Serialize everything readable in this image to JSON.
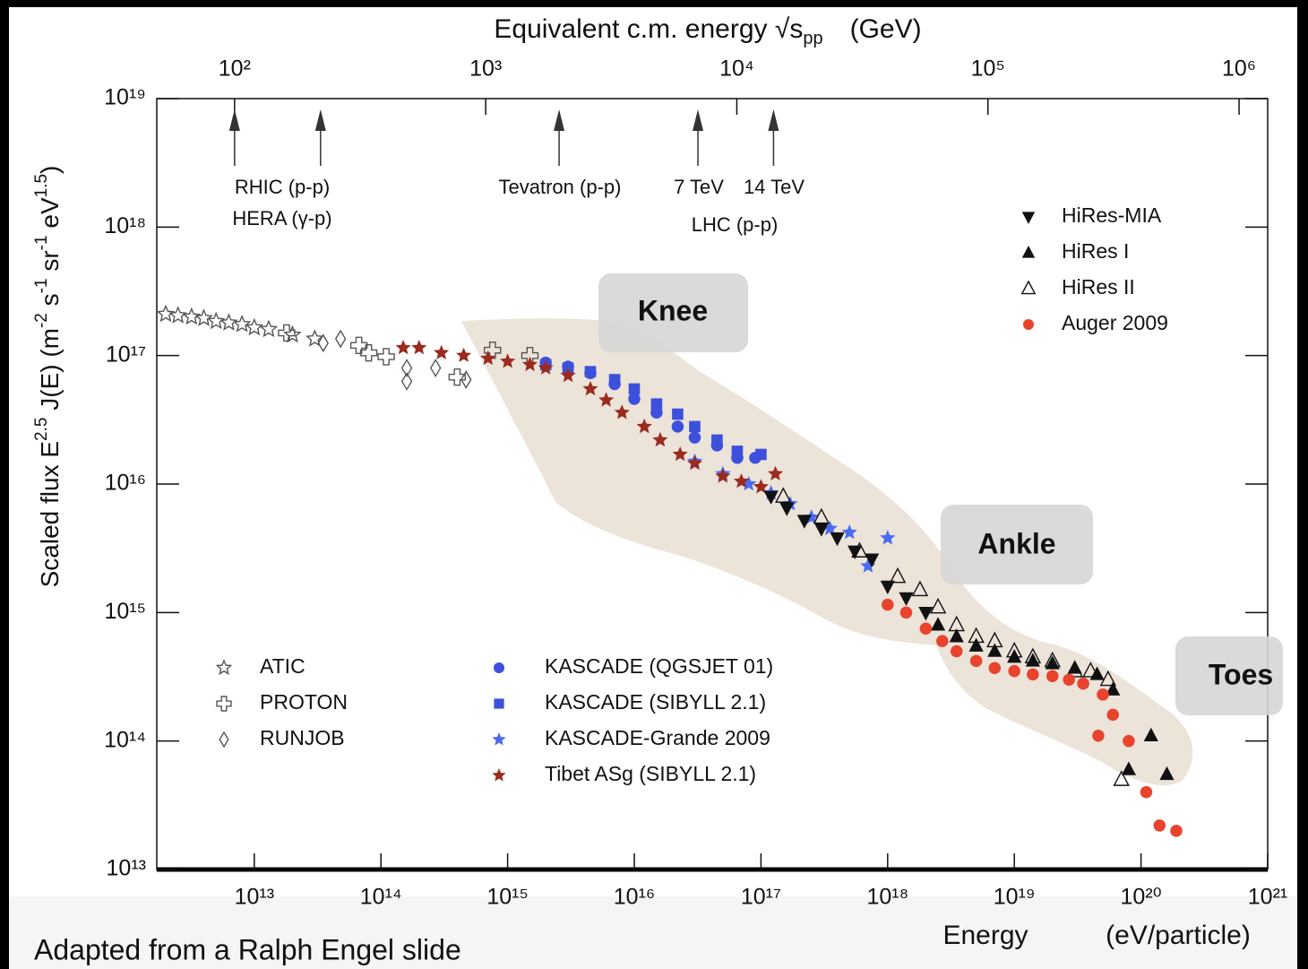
{
  "chart_data": {
    "type": "scatter",
    "title": [
      "Equivalent c.m. energy √s",
      "pp",
      "(GeV)"
    ],
    "ylabel": [
      "Scaled flux  E",
      "2.5",
      " J(E)  (m",
      "-2",
      " s",
      "-1",
      " sr",
      "-1",
      " eV",
      "1.5",
      ")"
    ],
    "xlabel": [
      "Energy",
      "(eV/particle)"
    ],
    "footnote": "Adapted from a Ralph Engel slide",
    "log_x": true,
    "log_y": true,
    "xlim": [
      1700000000000.0,
      1e+21
    ],
    "xticks": [
      {
        "value": 10000000000000.0,
        "label": "10¹³"
      },
      {
        "value": 100000000000000.0,
        "label": "10¹⁴"
      },
      {
        "value": 1000000000000000.0,
        "label": "10¹⁵"
      },
      {
        "value": 1e+16,
        "label": "10¹⁶"
      },
      {
        "value": 1e+17,
        "label": "10¹⁷"
      },
      {
        "value": 1e+18,
        "label": "10¹⁸"
      },
      {
        "value": 1e+19,
        "label": "10¹⁹"
      },
      {
        "value": 1e+20,
        "label": "10²⁰"
      },
      {
        "value": 1e+21,
        "label": "10²¹"
      }
    ],
    "x2lim": [
      49,
      1300000.0
    ],
    "x2ticks": [
      {
        "value": 100,
        "label": "10²"
      },
      {
        "value": 1000,
        "label": "10³"
      },
      {
        "value": 10000,
        "label": "10⁴"
      },
      {
        "value": 100000,
        "label": "10⁵"
      },
      {
        "value": 1000000,
        "label": "10⁶"
      }
    ],
    "ylim": [
      10000000000000.0,
      1e+19
    ],
    "yticks": [
      {
        "value": 10000000000000.0,
        "label": "10¹³"
      },
      {
        "value": 100000000000000.0,
        "label": "10¹⁴"
      },
      {
        "value": 1000000000000000.0,
        "label": "10¹⁵"
      },
      {
        "value": 1e+16,
        "label": "10¹⁶"
      },
      {
        "value": 1e+17,
        "label": "10¹⁷"
      },
      {
        "value": 1e+18,
        "label": "10¹⁸"
      },
      {
        "value": 1e+19,
        "label": "10¹⁹"
      }
    ],
    "collider_arrows_x2": [
      100,
      220,
      1960,
      7000,
      14000
    ],
    "collider_labels": [
      "RHIC (p-p)",
      "HERA (γ-p)",
      "Tevatron (p-p)",
      "7 TeV",
      "14 TeV",
      "LHC (p-p)"
    ],
    "annotations": [
      "Knee",
      "Ankle",
      "Toes"
    ],
    "series": [
      {
        "name": "ATIC",
        "color": "#555555",
        "marker": "star-open",
        "x": [
          2000000000000.0,
          2500000000000.0,
          3200000000000.0,
          4000000000000.0,
          5000000000000.0,
          6300000000000.0,
          8000000000000.0,
          10000000000000.0,
          13000000000000.0,
          20000000000000.0,
          30000000000000.0
        ],
        "y": [
          2.1e+17,
          2.05e+17,
          2e+17,
          1.95e+17,
          1.85e+17,
          1.8e+17,
          1.75e+17,
          1.65e+17,
          1.6e+17,
          1.45e+17,
          1.35e+17
        ]
      },
      {
        "name": "PROTON",
        "color": "#555555",
        "marker": "cross-open",
        "x": [
          18000000000000.0,
          67000000000000.0,
          80000000000000.0,
          110000000000000.0,
          400000000000000.0,
          760000000000000.0,
          1500000000000000.0
        ],
        "y": [
          1.5e+17,
          1.2e+17,
          1.05e+17,
          9.8e+16,
          6.8e+16,
          1.1e+17,
          1e+17
        ]
      },
      {
        "name": "RUNJOB",
        "color": "#555555",
        "marker": "diamond-open",
        "x": [
          35000000000000.0,
          48000000000000.0,
          160000000000000.0,
          270000000000000.0,
          470000000000000.0,
          160000000000000.0
        ],
        "y": [
          1.25e+17,
          1.35e+17,
          8e+16,
          8e+16,
          6.5e+16,
          6.3e+16
        ]
      },
      {
        "name": "KASCADE (QGSJET 01)",
        "color": "#3c50dc",
        "marker": "circle",
        "x": [
          2000000000000000.0,
          3000000000000000.0,
          4500000000000000.0,
          7000000000000000.0,
          1e+16,
          1.5e+16,
          2.2e+16,
          3e+16,
          4.5e+16,
          6.5e+16,
          9e+16
        ],
        "y": [
          8.8e+16,
          8.2e+16,
          7.3e+16,
          6e+16,
          4.6e+16,
          3.6e+16,
          2.8e+16,
          2.3e+16,
          2e+16,
          1.6e+16,
          1.6e+16
        ]
      },
      {
        "name": "KASCADE (SIBYLL 2.1)",
        "color": "#3c50dc",
        "marker": "square",
        "x": [
          2000000000000000.0,
          3000000000000000.0,
          4500000000000000.0,
          7000000000000000.0,
          1e+16,
          1.5e+16,
          2.2e+16,
          3e+16,
          4.5e+16,
          6.5e+16,
          1e+17
        ],
        "y": [
          8.5e+16,
          8e+16,
          7.5e+16,
          6.5e+16,
          5.5e+16,
          4.2e+16,
          3.5e+16,
          2.8e+16,
          2.2e+16,
          1.8e+16,
          1.7e+16
        ]
      },
      {
        "name": "KASCADE-Grande 2009",
        "color": "#4a6af0",
        "marker": "star",
        "x": [
          3e+16,
          5e+16,
          8e+16,
          1.2e+17,
          1.7e+17,
          2.5e+17,
          3.5e+17,
          5e+17,
          7e+17,
          1e+18
        ],
        "y": [
          1.5e+16,
          1.2e+16,
          1e+16,
          8500000000000000.0,
          7000000000000000.0,
          5500000000000000.0,
          4500000000000000.0,
          4200000000000000.0,
          2300000000000000.0,
          3800000000000000.0
        ]
      },
      {
        "name": "Tibet ASg (SIBYLL 2.1)",
        "color": "#9b2a1f",
        "marker": "star",
        "x": [
          150000000000000.0,
          200000000000000.0,
          300000000000000.0,
          450000000000000.0,
          700000000000000.0,
          1000000000000000.0,
          1500000000000000.0,
          2000000000000000.0,
          3000000000000000.0,
          4500000000000000.0,
          6000000000000000.0,
          8000000000000000.0,
          1.2e+16,
          1.6e+16,
          2.3e+16,
          3e+16,
          5e+16,
          7e+16,
          1e+17,
          1.3e+17
        ],
        "y": [
          1.15e+17,
          1.15e+17,
          1.05e+17,
          1e+17,
          9.5e+16,
          9e+16,
          8.5e+16,
          8e+16,
          7e+16,
          5.5e+16,
          4.5e+16,
          3.6e+16,
          2.8e+16,
          2.2e+16,
          1.7e+16,
          1.45e+16,
          1.15e+16,
          1.05e+16,
          9500000000000000.0,
          1.2e+16
        ]
      },
      {
        "name": "HiRes-MIA",
        "color": "#111111",
        "marker": "triangle-down",
        "x": [
          1.2e+17,
          1.6e+17,
          2.2e+17,
          3e+17,
          4e+17,
          5.5e+17,
          7.5e+17,
          1e+18,
          1.4e+18,
          2e+18
        ],
        "y": [
          8000000000000000.0,
          6500000000000000.0,
          5200000000000000.0,
          4500000000000000.0,
          3800000000000000.0,
          3000000000000000.0,
          2600000000000000.0,
          1600000000000000.0,
          1300000000000000.0,
          1000000000000000.0
        ]
      },
      {
        "name": "HiRes I",
        "color": "#111111",
        "marker": "triangle-up",
        "x": [
          2.5e+18,
          3.5e+18,
          5e+18,
          7e+18,
          1e+19,
          1.4e+19,
          2e+19,
          3e+19,
          4.5e+19,
          6e+19,
          8e+19,
          1.2e+20,
          1.6e+20
        ],
        "y": [
          800000000000000.0,
          650000000000000.0,
          550000000000000.0,
          500000000000000.0,
          450000000000000.0,
          420000000000000.0,
          400000000000000.0,
          370000000000000.0,
          330000000000000.0,
          250000000000000.0,
          60000000000000.0,
          110000000000000.0,
          55000000000000.0
        ]
      },
      {
        "name": "HiRes II",
        "color": "#111111",
        "marker": "triangle-up-open",
        "x": [
          1.5e+17,
          3e+17,
          6e+17,
          1.2e+18,
          1.8e+18,
          2.5e+18,
          3.5e+18,
          5e+18,
          7e+18,
          1e+19,
          1.4e+19,
          2e+19,
          3e+19,
          4e+19,
          5.5e+19,
          7e+19
        ],
        "y": [
          8000000000000000.0,
          5500000000000000.0,
          3000000000000000.0,
          1900000000000000.0,
          1500000000000000.0,
          1100000000000000.0,
          800000000000000.0,
          650000000000000.0,
          600000000000000.0,
          500000000000000.0,
          450000000000000.0,
          420000000000000.0,
          350000000000000.0,
          350000000000000.0,
          300000000000000.0,
          50000000000000.0
        ]
      },
      {
        "name": "Auger 2009",
        "color": "#e8432d",
        "marker": "circle",
        "x": [
          1e+18,
          1.4e+18,
          2e+18,
          2.7e+18,
          3.5e+18,
          5e+18,
          7e+18,
          1e+19,
          1.4e+19,
          2e+19,
          2.7e+19,
          3.5e+19,
          5e+19,
          6e+19,
          4.6e+19,
          8e+19,
          1.1e+20,
          1.4e+20,
          1.9e+20
        ],
        "y": [
          1150000000000000.0,
          1000000000000000.0,
          750000000000000.0,
          600000000000000.0,
          500000000000000.0,
          420000000000000.0,
          370000000000000.0,
          350000000000000.0,
          330000000000000.0,
          320000000000000.0,
          300000000000000.0,
          280000000000000.0,
          230000000000000.0,
          160000000000000.0,
          110000000000000.0,
          100000000000000.0,
          40000000000000.0,
          22000000000000.0,
          20000000000000.0
        ]
      }
    ]
  }
}
